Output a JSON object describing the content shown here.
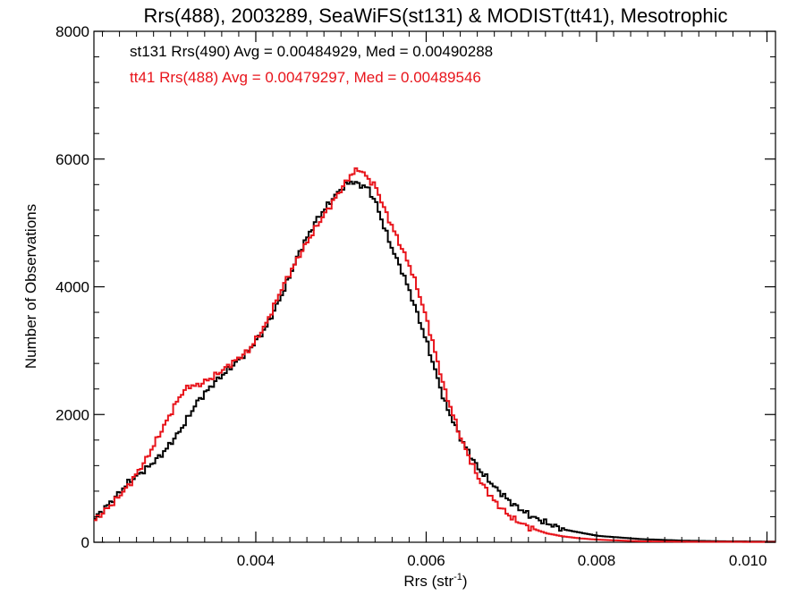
{
  "chart_data": {
    "type": "line",
    "title": "Rrs(488), 2003289, SeaWiFS(st131) & MODIST(tt41), Mesotrophic",
    "xlabel": "Rrs (str",
    "xlabel_sup": "-1",
    "xlabel_end": ")",
    "ylabel": "Number of Observations",
    "xlim": [
      0.0021,
      0.0101
    ],
    "ylim": [
      0,
      8000
    ],
    "x_ticks": [
      0.004,
      0.006,
      0.008,
      0.01
    ],
    "x_tick_labels": [
      "0.004",
      "0.006",
      "0.008",
      "0.010"
    ],
    "y_ticks": [
      0,
      2000,
      4000,
      6000,
      8000
    ],
    "y_tick_labels": [
      "0",
      "2000",
      "4000",
      "6000",
      "8000"
    ],
    "grid": false,
    "legend_placement": "top-left",
    "series": [
      {
        "name": "st131 Rrs(490) Avg = 0.00484929, Med = 0.00490288",
        "color": "#000000",
        "x": [
          0.0021,
          0.0023,
          0.0025,
          0.0027,
          0.0029,
          0.0031,
          0.0033,
          0.0035,
          0.0037,
          0.0039,
          0.0041,
          0.0043,
          0.0045,
          0.0047,
          0.0049,
          0.005,
          0.0051,
          0.0052,
          0.0053,
          0.0054,
          0.0055,
          0.0056,
          0.0057,
          0.0058,
          0.006,
          0.0062,
          0.0064,
          0.0066,
          0.0068,
          0.007,
          0.0072,
          0.0074,
          0.0076,
          0.0078,
          0.008,
          0.0082,
          0.0085,
          0.009,
          0.0095,
          0.0101
        ],
        "y": [
          380,
          650,
          950,
          1150,
          1400,
          1750,
          2200,
          2500,
          2750,
          3000,
          3350,
          3900,
          4550,
          5050,
          5400,
          5550,
          5650,
          5600,
          5550,
          5300,
          4900,
          4550,
          4250,
          3900,
          3100,
          2200,
          1600,
          1150,
          850,
          600,
          420,
          300,
          200,
          150,
          100,
          80,
          50,
          25,
          15,
          10
        ]
      },
      {
        "name": "tt41 Rrs(488) Avg = 0.00479297, Med = 0.00489546",
        "color": "#e8141b",
        "x": [
          0.0021,
          0.0023,
          0.0025,
          0.0027,
          0.0029,
          0.0031,
          0.0032,
          0.0033,
          0.0035,
          0.0037,
          0.0039,
          0.0041,
          0.0043,
          0.0045,
          0.0047,
          0.0049,
          0.005,
          0.0051,
          0.0052,
          0.0053,
          0.0054,
          0.0055,
          0.0056,
          0.0057,
          0.0058,
          0.0059,
          0.006,
          0.0062,
          0.0064,
          0.0066,
          0.0068,
          0.007,
          0.0072,
          0.0074,
          0.0076,
          0.0078,
          0.008,
          0.0085,
          0.009,
          0.0101
        ],
        "y": [
          350,
          600,
          900,
          1300,
          1800,
          2300,
          2450,
          2450,
          2600,
          2800,
          3000,
          3400,
          4000,
          4500,
          4950,
          5350,
          5550,
          5750,
          5850,
          5700,
          5550,
          5200,
          4900,
          4600,
          4300,
          3900,
          3450,
          2400,
          1600,
          1000,
          620,
          370,
          230,
          140,
          90,
          60,
          40,
          15,
          8,
          5
        ]
      }
    ]
  }
}
